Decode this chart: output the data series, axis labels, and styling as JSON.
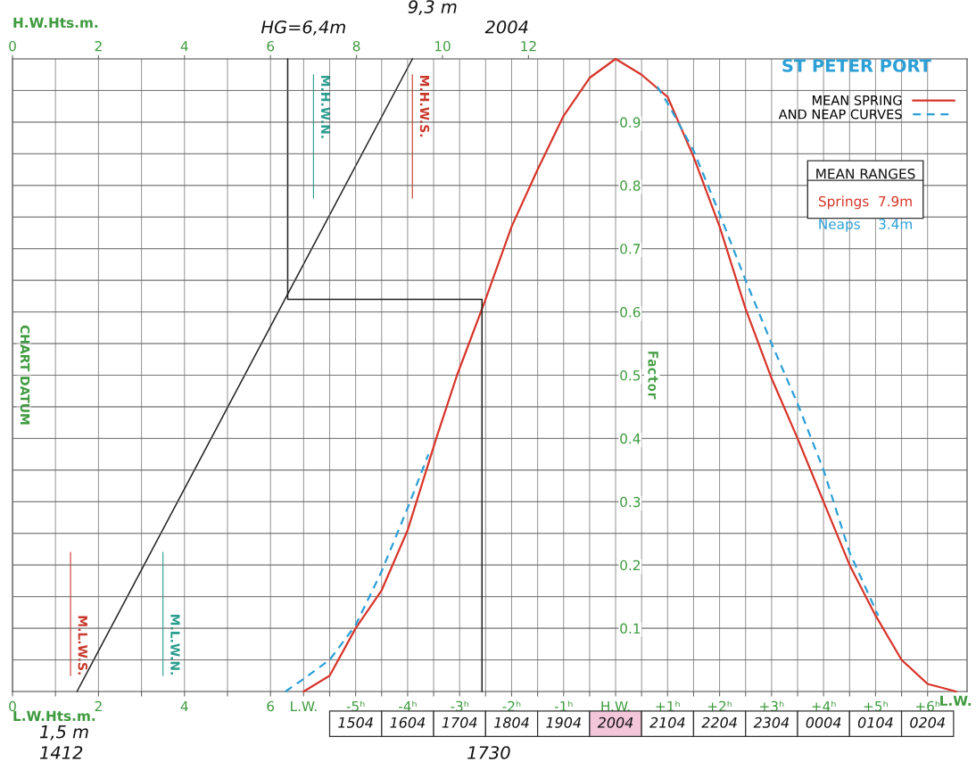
{
  "chart_data": [
    {
      "type": "line",
      "xlabel": "L.W.Hts.m.",
      "x2label": "H.W.Hts.m.",
      "ylabel": "CHART DATUM",
      "xlim": [
        0,
        22.2
      ],
      "xticks": [
        0,
        {
          "value": 1,
          "label": null
        },
        2,
        {
          "value": 3,
          "label": null
        },
        4,
        {
          "value": 5,
          "label": null
        },
        6
      ],
      "x2lim": [
        0,
        22.2
      ],
      "x2ticks": [
        0,
        2,
        4,
        6,
        8,
        10,
        12
      ],
      "ylim": [
        0,
        1
      ],
      "yticks": [
        {
          "value": 0.05,
          "label": null
        },
        {
          "value": 0.1,
          "label": null
        },
        {
          "value": 0.15,
          "label": null
        },
        {
          "value": 0.2,
          "label": null
        },
        {
          "value": 0.25,
          "label": null
        },
        {
          "value": 0.3,
          "label": null
        },
        {
          "value": 0.35,
          "label": null
        },
        {
          "value": 0.4,
          "label": null
        },
        {
          "value": 0.45,
          "label": null
        },
        {
          "value": 0.5,
          "label": null
        },
        {
          "value": 0.55,
          "label": null
        },
        {
          "value": 0.6,
          "label": null
        },
        {
          "value": 0.65,
          "label": null
        },
        {
          "value": 0.7,
          "label": null
        },
        {
          "value": 0.75,
          "label": null
        },
        {
          "value": 0.8,
          "label": null
        },
        {
          "value": 0.85,
          "label": null
        },
        {
          "value": 0.9,
          "label": null
        },
        {
          "value": 0.95,
          "label": null
        }
      ],
      "tick_labels": "x",
      "grid": true,
      "series": [
        {
          "color": "#222222",
          "x": [
            1.5,
            9.3
          ],
          "values": [
            0,
            1
          ]
        },
        {
          "color": "#222222",
          "x": [
            6.4,
            6.4
          ],
          "values": [
            0.62,
            1.0
          ]
        }
      ],
      "ref_lines": [
        {
          "axis": "x2",
          "value": 7.0,
          "label": "M.H.W.N.",
          "color": "#2a9d8f"
        },
        {
          "axis": "x2",
          "value": 9.3,
          "label": "M.H.W.S.",
          "color": "#c8382b"
        },
        {
          "axis": "x",
          "value": 1.35,
          "label": "M.L.W.S.",
          "color": "#c8382b"
        },
        {
          "axis": "x",
          "value": 3.5,
          "label": "M.L.W.N.",
          "color": "#2a9d8f"
        }
      ],
      "annotations": [
        "HG=6,4m",
        "9,3 m",
        "2004",
        "1,5 m",
        "1412"
      ]
    },
    {
      "type": "line",
      "title": "ST PETER PORT",
      "ylabel": "Factor",
      "xlabel": "L.W.",
      "xlim": [
        -11.6,
        6.76
      ],
      "xticks": [
        {
          "value": -6,
          "label": "L.W."
        },
        {
          "value": -5.5,
          "label": null
        },
        {
          "value": -5,
          "label": "-5ʰ"
        },
        {
          "value": -4.5,
          "label": null
        },
        {
          "value": -4,
          "label": "-4ʰ"
        },
        {
          "value": -3.5,
          "label": null
        },
        {
          "value": -3,
          "label": "-3ʰ"
        },
        {
          "value": -2.5,
          "label": null
        },
        {
          "value": -2,
          "label": "-2ʰ"
        },
        {
          "value": -1.5,
          "label": null
        },
        {
          "value": -1,
          "label": "-1ʰ"
        },
        {
          "value": -0.5,
          "label": null
        },
        {
          "value": 0,
          "label": "H.W."
        },
        {
          "value": 0.5,
          "label": null
        },
        {
          "value": 1,
          "label": "+1ʰ"
        },
        {
          "value": 1.5,
          "label": null
        },
        {
          "value": 2,
          "label": "+2ʰ"
        },
        {
          "value": 2.5,
          "label": null
        },
        {
          "value": 3,
          "label": "+3ʰ"
        },
        {
          "value": 3.5,
          "label": null
        },
        {
          "value": 4,
          "label": "+4ʰ"
        },
        {
          "value": 4.5,
          "label": null
        },
        {
          "value": 5,
          "label": "+5ʰ"
        },
        {
          "value": 5.5,
          "label": null
        },
        {
          "value": 6,
          "label": "+6ʰ"
        }
      ],
      "ylim": [
        0,
        1
      ],
      "yticks": [
        {
          "value": 0.05,
          "label": null
        },
        0.1,
        {
          "value": 0.15,
          "label": null
        },
        0.2,
        {
          "value": 0.25,
          "label": null
        },
        0.3,
        {
          "value": 0.35,
          "label": null
        },
        0.4,
        {
          "value": 0.45,
          "label": null
        },
        0.5,
        {
          "value": 0.55,
          "label": null
        },
        0.6,
        {
          "value": 0.65,
          "label": null
        },
        0.7,
        {
          "value": 0.75,
          "label": null
        },
        0.8,
        {
          "value": 0.85,
          "label": null
        },
        0.9,
        {
          "value": 0.95,
          "label": null
        }
      ],
      "grid": true,
      "legend": "top right",
      "series": [
        {
          "name": "MEAN SPRING",
          "color": "#d8352a",
          "line_style": "solid",
          "x": [
            -6.0,
            -5.5,
            -5.0,
            -4.5,
            -4.0,
            -3.45,
            -3.05,
            -2.5,
            -2.0,
            -1.5,
            -1.0,
            -0.5,
            0,
            0.5,
            1.0,
            1.5,
            2.0,
            2.5,
            3.0,
            3.5,
            4.0,
            4.5,
            5.0,
            5.5,
            6.0,
            6.55
          ],
          "values": [
            0,
            0.025,
            0.1,
            0.16,
            0.255,
            0.4,
            0.5,
            0.62,
            0.735,
            0.825,
            0.91,
            0.97,
            1.0,
            0.975,
            0.94,
            0.845,
            0.735,
            0.605,
            0.495,
            0.4,
            0.3,
            0.2,
            0.12,
            0.05,
            0.012,
            0
          ]
        },
        {
          "name": "AND NEAP CURVES",
          "color": "#2b9fd6",
          "line_style": "dashed",
          "x": [
            -6.35,
            -6.0,
            -5.5,
            -5.0,
            -4.5,
            -4.0,
            -3.6,
            0,
            0.8,
            1.0,
            1.5,
            2.0,
            2.5,
            3.0,
            3.5,
            4.0,
            4.5,
            5.05
          ],
          "values": [
            0,
            0.02,
            0.05,
            0.105,
            0.19,
            0.29,
            0.375,
            null,
            0.956,
            0.93,
            0.855,
            0.755,
            0.65,
            0.55,
            0.455,
            0.35,
            0.22,
            0.12
          ]
        },
        {
          "color": "#222222",
          "x": [
            -2.57,
            -2.57
          ],
          "values": [
            0,
            0.62
          ]
        },
        {
          "color": "#222222",
          "x": [
            -2.57,
            -6.3
          ],
          "values": [
            0.62,
            0.62
          ]
        }
      ],
      "annotations": [
        "MEAN RANGES",
        "Springs  7.9m",
        "Neaps    3.4m",
        "1730",
        "1504",
        "1604",
        "1704",
        "1804",
        "1904",
        "2004",
        "2104",
        "2204",
        "2304",
        "0004",
        "0104",
        "0204"
      ]
    }
  ]
}
